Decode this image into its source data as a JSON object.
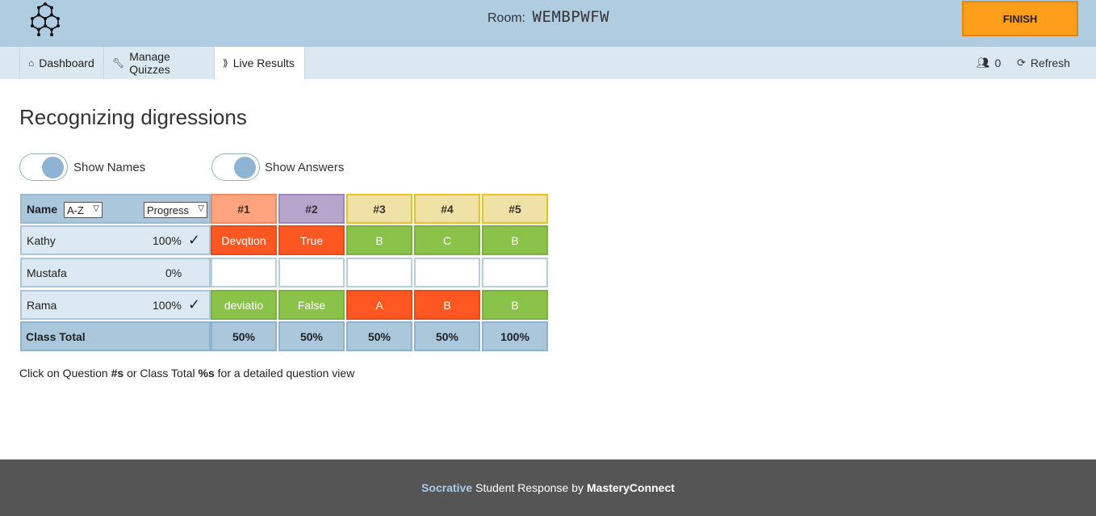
{
  "header": {
    "room_label": "Room:",
    "room_code": "WEMBPWFW",
    "finish_label": "FINISH"
  },
  "nav": {
    "tabs": [
      {
        "label": "Dashboard",
        "icon": "home-icon"
      },
      {
        "label": "Manage Quizzes",
        "icon": "wrench-icon"
      },
      {
        "label": "Live Results",
        "icon": "signal-icon"
      }
    ],
    "student_count": "0",
    "refresh_label": "Refresh"
  },
  "quiz": {
    "title": "Recognizing digressions",
    "toggles": {
      "show_names": "Show Names",
      "show_answers": "Show Answers"
    }
  },
  "grid": {
    "name_header": "Name",
    "sort_select": "A-Z",
    "progress_select": "Progress",
    "questions": [
      "#1",
      "#2",
      "#3",
      "#4",
      "#5"
    ],
    "question_colors": [
      {
        "bg": "#ffa47f",
        "border": "#f0895f"
      },
      {
        "bg": "#b8a5cd",
        "border": "#9e87b9"
      },
      {
        "bg": "#f0e1a6",
        "border": "#e6c31e"
      },
      {
        "bg": "#f0e1a6",
        "border": "#e6c31e"
      },
      {
        "bg": "#f0e1a6",
        "border": "#e6c31e"
      }
    ],
    "rows": [
      {
        "name": "Kathy",
        "progress": "100%",
        "complete": true,
        "answers": [
          {
            "text": "Devqtion",
            "status": "red"
          },
          {
            "text": "True",
            "status": "red"
          },
          {
            "text": "B",
            "status": "green"
          },
          {
            "text": "C",
            "status": "green"
          },
          {
            "text": "B",
            "status": "green"
          }
        ]
      },
      {
        "name": "Mustafa",
        "progress": "0%",
        "complete": false,
        "answers": [
          {
            "text": "",
            "status": "empty"
          },
          {
            "text": "",
            "status": "empty"
          },
          {
            "text": "",
            "status": "empty"
          },
          {
            "text": "",
            "status": "empty"
          },
          {
            "text": "",
            "status": "empty"
          }
        ]
      },
      {
        "name": "Rama",
        "progress": "100%",
        "complete": true,
        "answers": [
          {
            "text": "deviatio",
            "status": "green"
          },
          {
            "text": "False",
            "status": "green"
          },
          {
            "text": "A",
            "status": "red"
          },
          {
            "text": "B",
            "status": "red"
          },
          {
            "text": "B",
            "status": "green"
          }
        ]
      }
    ],
    "class_total_label": "Class Total",
    "class_totals": [
      "50%",
      "50%",
      "50%",
      "50%",
      "100%"
    ],
    "checkmark": "✓"
  },
  "hint": {
    "part1": "Click on Question ",
    "bold1": "#s",
    "part2": " or Class Total ",
    "bold2": "%s",
    "part3": " for a detailed question view"
  },
  "footer": {
    "brand": "Socrative",
    "middle": "Student Response by",
    "company": "MasteryConnect"
  }
}
